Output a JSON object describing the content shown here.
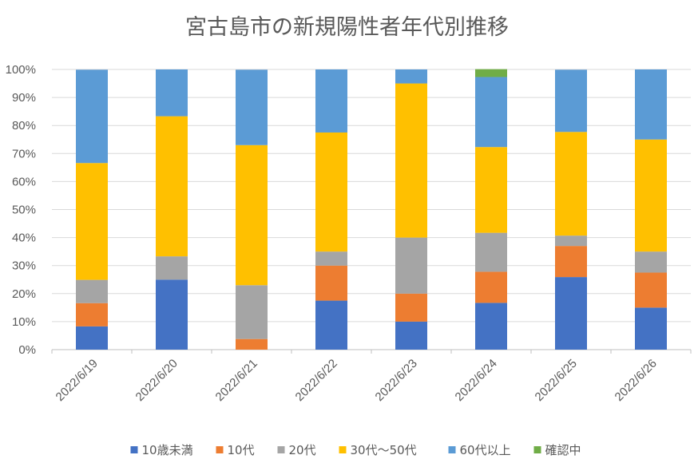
{
  "chart_data": {
    "type": "bar",
    "stacked": true,
    "title": "宮古島市の新規陽性者年代別推移",
    "xlabel": "",
    "ylabel": "",
    "ylim": [
      0,
      100
    ],
    "yticks": [
      "0%",
      "10%",
      "20%",
      "30%",
      "40%",
      "50%",
      "60%",
      "70%",
      "80%",
      "90%",
      "100%"
    ],
    "grid": true,
    "legend_position": "bottom",
    "categories": [
      "2022/6/19",
      "2022/6/20",
      "2022/6/21",
      "2022/6/22",
      "2022/6/23",
      "2022/6/24",
      "2022/6/25",
      "2022/6/26"
    ],
    "series": [
      {
        "name": "10歳未満",
        "color": "#4472C4",
        "values": [
          8.3,
          25.0,
          0,
          17.5,
          10.0,
          16.7,
          25.9,
          15.0
        ]
      },
      {
        "name": "10代",
        "color": "#ED7D31",
        "values": [
          8.3,
          0,
          3.8,
          12.5,
          10.0,
          11.1,
          11.1,
          12.5
        ]
      },
      {
        "name": "20代",
        "color": "#A5A5A5",
        "values": [
          8.3,
          8.3,
          19.2,
          5.0,
          20.0,
          13.9,
          3.7,
          7.5
        ]
      },
      {
        "name": "30代～50代",
        "color": "#FFC000",
        "values": [
          41.7,
          50.0,
          50.0,
          42.5,
          55.0,
          30.6,
          37.0,
          40.0
        ]
      },
      {
        "name": "60代以上",
        "color": "#5B9BD5",
        "values": [
          33.3,
          16.7,
          26.9,
          22.5,
          5.0,
          25.0,
          22.2,
          25.0
        ]
      },
      {
        "name": "確認中",
        "color": "#70AD47",
        "values": [
          0,
          0,
          0,
          0,
          0,
          2.8,
          0,
          0
        ]
      }
    ]
  }
}
